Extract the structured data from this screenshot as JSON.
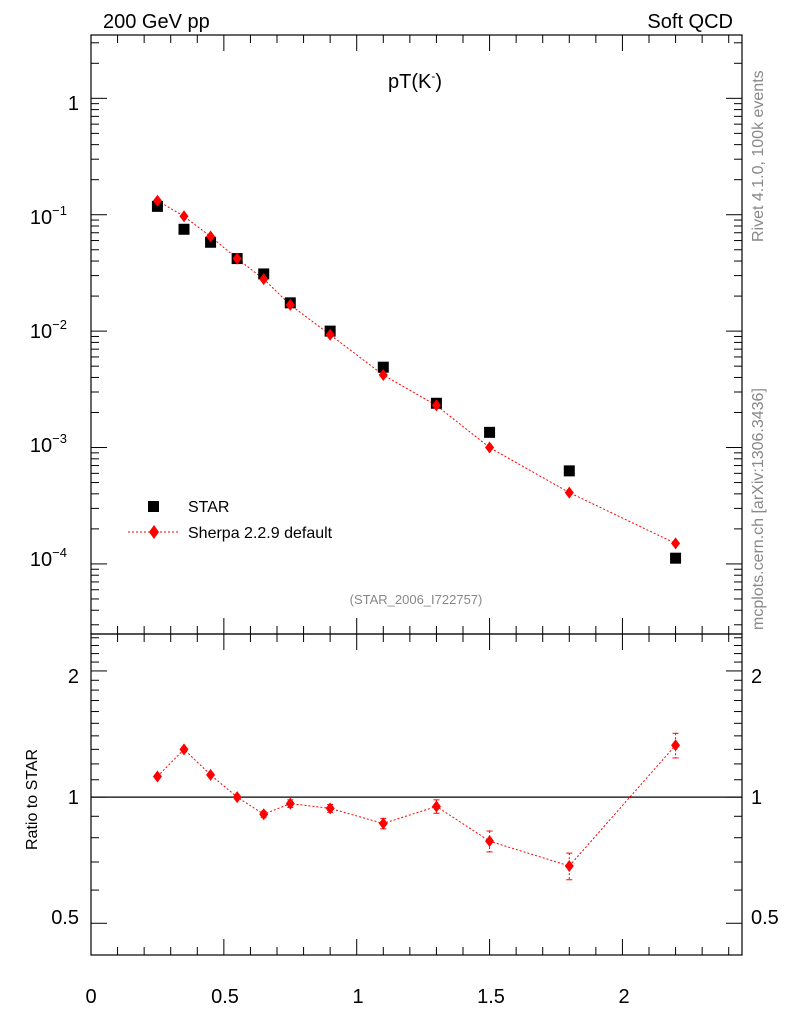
{
  "header": {
    "left": "200 GeV pp",
    "right": "Soft QCD"
  },
  "side_labels": {
    "rivet": "Rivet 4.1.0,  100k events",
    "mcplots": "mcplots.cern.ch [arXiv:1306.3436]"
  },
  "chart_data": [
    {
      "type": "scatter",
      "panel": "main",
      "title": "pT(K⁻)",
      "title_base": "pT(K",
      "title_sup": "-",
      "title_close": ")",
      "yscale": "log",
      "ylim": [
        2.5e-05,
        3.5
      ],
      "xlim": [
        0,
        2.45
      ],
      "yticks": [
        {
          "value": 1,
          "base": "1",
          "exp": ""
        },
        {
          "value": 0.1,
          "base": "10",
          "exp": "−1"
        },
        {
          "value": 0.01,
          "base": "10",
          "exp": "−2"
        },
        {
          "value": 0.001,
          "base": "10",
          "exp": "−3"
        },
        {
          "value": 0.0001,
          "base": "10",
          "exp": "−4"
        }
      ],
      "watermark": "(STAR_2006_I722757)",
      "legend": [
        {
          "name": "STAR",
          "marker": "square",
          "color": "#000000"
        },
        {
          "name": "Sherpa 2.2.9 default",
          "marker": "diamond",
          "color": "#ff0000"
        }
      ],
      "series": [
        {
          "name": "STAR",
          "x": [
            0.25,
            0.35,
            0.45,
            0.55,
            0.65,
            0.75,
            0.9,
            1.1,
            1.3,
            1.5,
            1.8,
            2.2
          ],
          "values": [
            0.118,
            0.075,
            0.058,
            0.042,
            0.031,
            0.0175,
            0.01,
            0.0049,
            0.0024,
            0.00135,
            0.00063,
            0.000112
          ]
        },
        {
          "name": "Sherpa 2.2.9 default",
          "x": [
            0.25,
            0.35,
            0.45,
            0.55,
            0.65,
            0.75,
            0.9,
            1.1,
            1.3,
            1.5,
            1.8,
            2.2
          ],
          "values": [
            0.132,
            0.097,
            0.065,
            0.042,
            0.028,
            0.0168,
            0.0093,
            0.0042,
            0.0023,
            0.001,
            0.00041,
            0.00015
          ]
        }
      ]
    },
    {
      "type": "line",
      "panel": "ratio",
      "ylabel": "Ratio to STAR",
      "xlabel": "",
      "yscale": "log",
      "ylim": [
        0.42,
        2.45
      ],
      "xlim": [
        0,
        2.45
      ],
      "yticks": [
        0.5,
        1,
        2
      ],
      "ytick_labels": [
        "0.5",
        "1",
        "2"
      ],
      "xticks": [
        0,
        0.5,
        1,
        1.5,
        2
      ],
      "xtick_labels": [
        "0",
        "0.5",
        "1",
        "1.5",
        "2"
      ],
      "reference_line": 1,
      "series": [
        {
          "name": "Sherpa 2.2.9 default",
          "x": [
            0.25,
            0.35,
            0.45,
            0.55,
            0.65,
            0.75,
            0.9,
            1.1,
            1.3,
            1.5,
            1.8,
            2.2
          ],
          "values": [
            1.12,
            1.3,
            1.13,
            1.0,
            0.91,
            0.965,
            0.94,
            0.865,
            0.95,
            0.785,
            0.685,
            1.33
          ],
          "errors": [
            0.01,
            0.01,
            0.01,
            0.01,
            0.015,
            0.02,
            0.02,
            0.025,
            0.035,
            0.045,
            0.05,
            0.09
          ]
        }
      ]
    }
  ]
}
